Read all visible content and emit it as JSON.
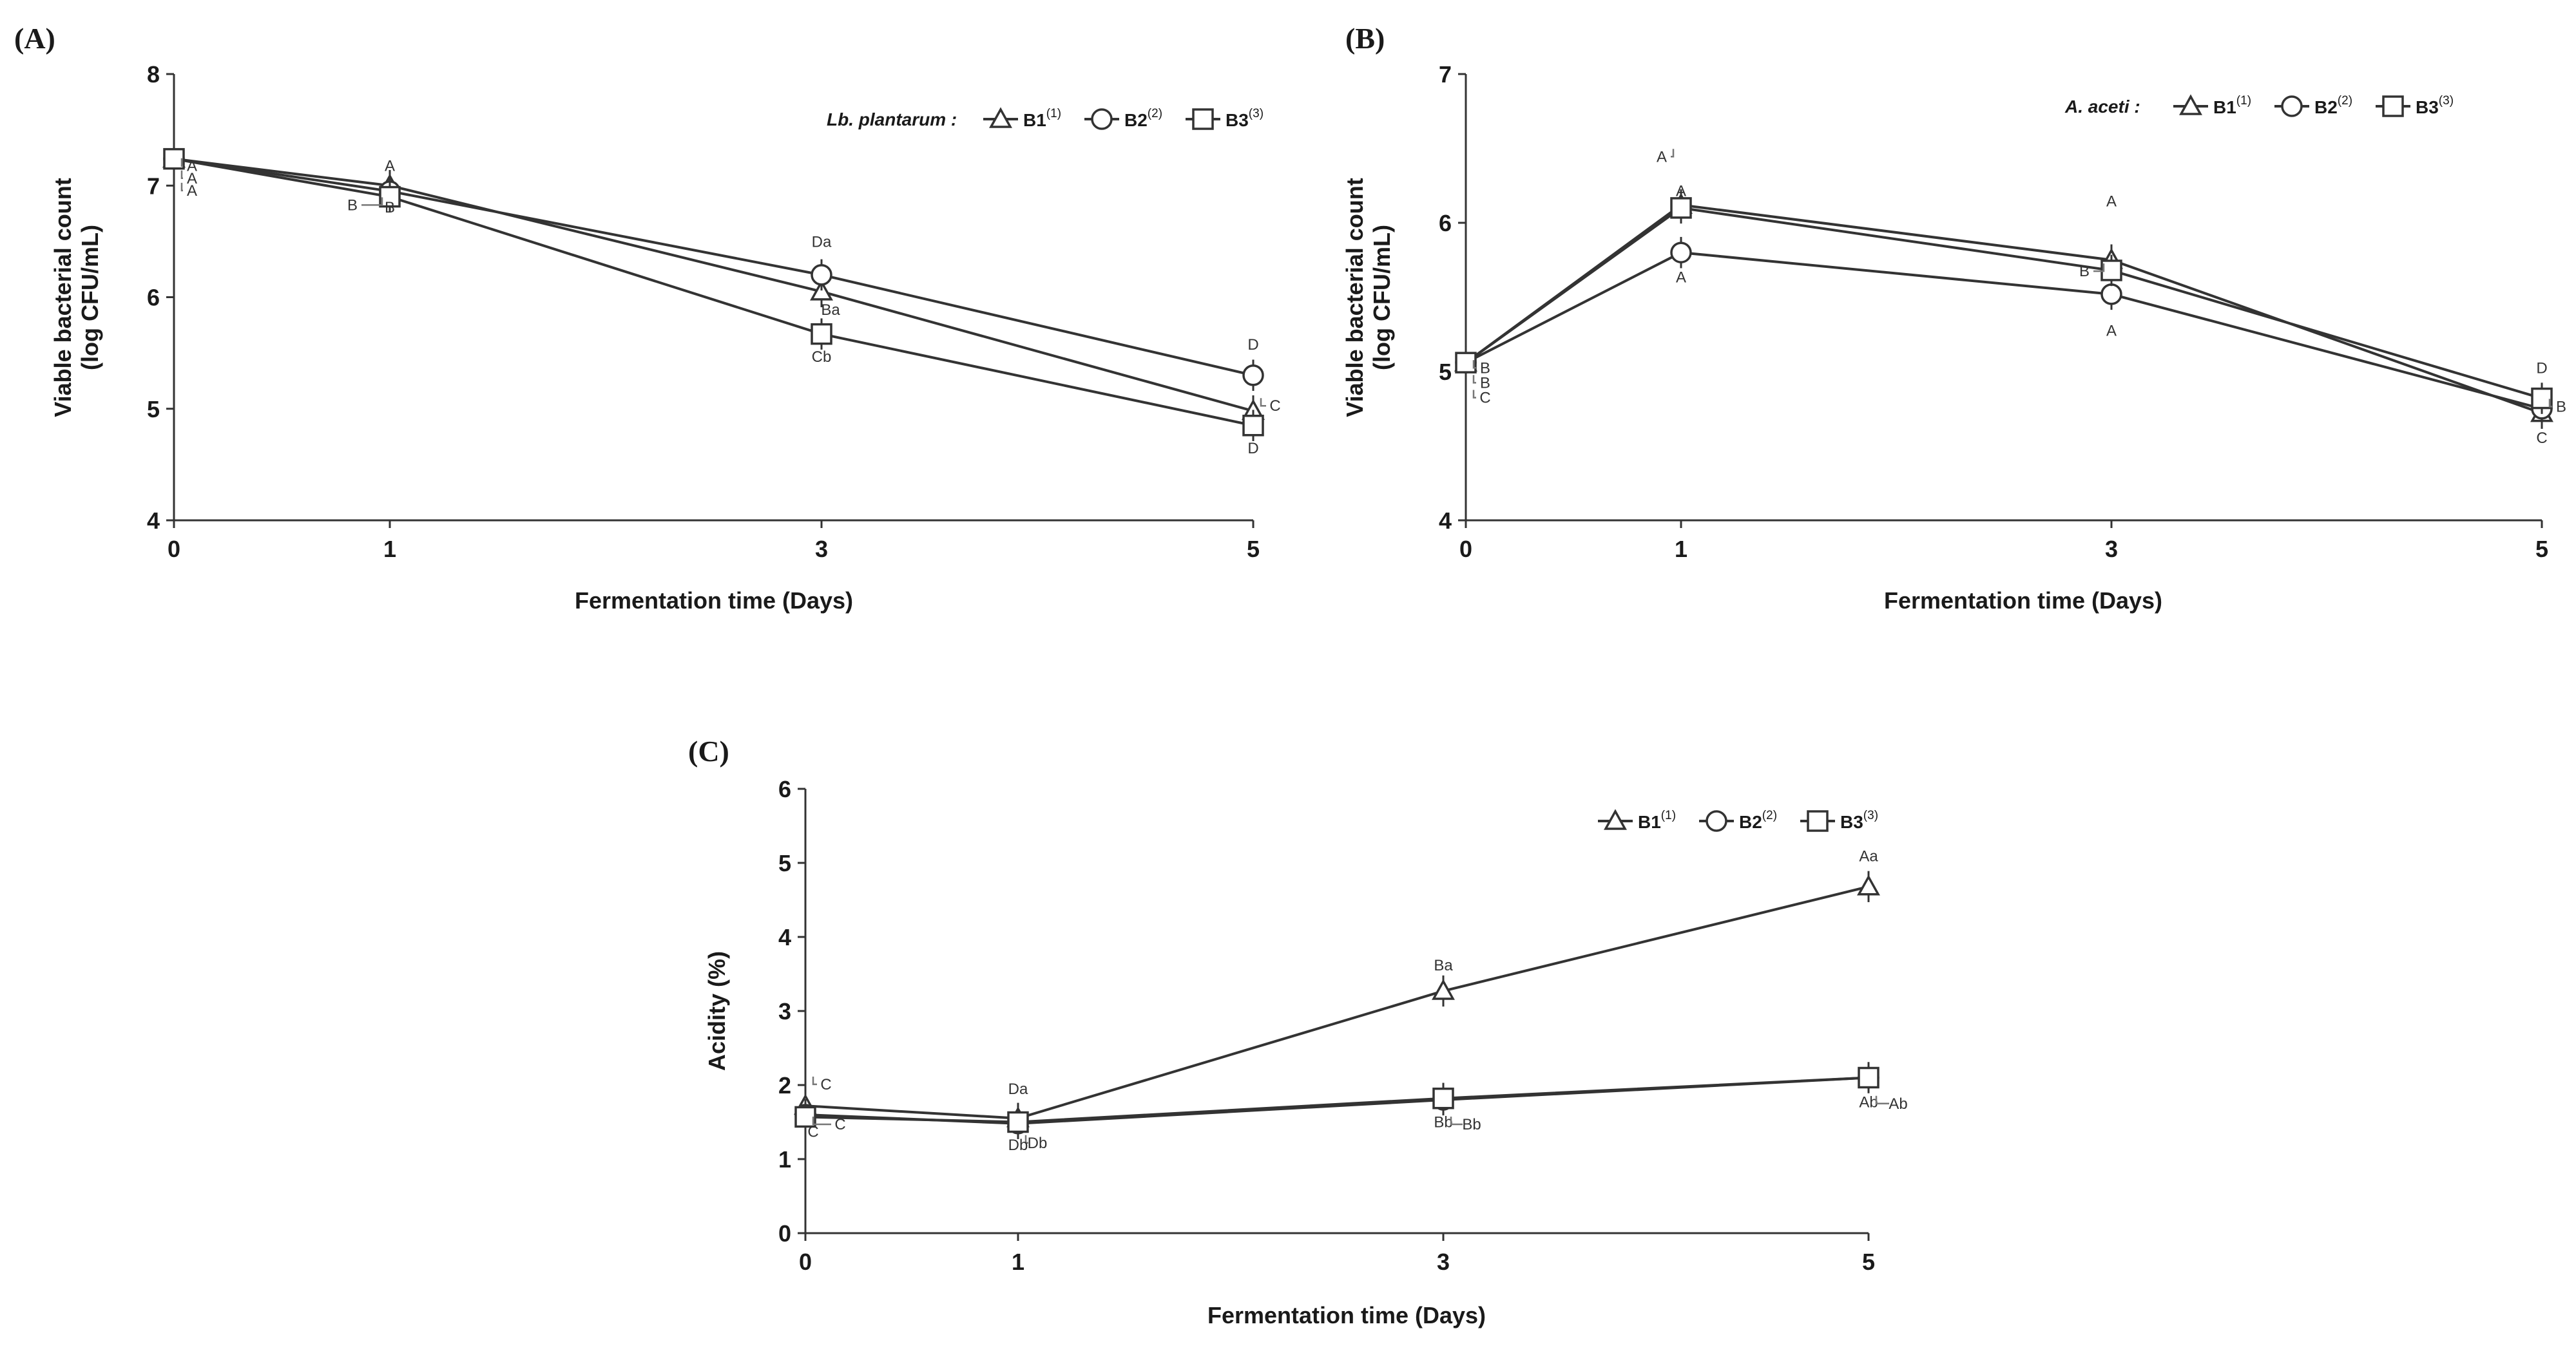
{
  "chart_data": [
    {
      "type": "line",
      "panel_label": "(A)",
      "xlabel": "Fermentation time (Days)",
      "ylabel_line1": "Viable bacterial count",
      "ylabel_line2": "(log CFU/mL)",
      "x": [
        0,
        1,
        3,
        5
      ],
      "xticks": [
        "0",
        "1",
        "3",
        "5"
      ],
      "ylim": [
        4,
        8
      ],
      "yticks": [
        "4",
        "5",
        "6",
        "7",
        "8"
      ],
      "legend_prefix": "Lb. plantarum :",
      "series": [
        {
          "name": "B1",
          "sup": "(1)",
          "marker": "triangle",
          "values": [
            7.24,
            7.0,
            6.05,
            4.98
          ]
        },
        {
          "name": "B2",
          "sup": "(2)",
          "marker": "circle",
          "values": [
            7.24,
            6.95,
            6.2,
            5.3
          ]
        },
        {
          "name": "B3",
          "sup": "(3)",
          "marker": "square",
          "values": [
            7.24,
            6.9,
            5.67,
            4.85
          ]
        }
      ],
      "annotations": [
        {
          "text": "A",
          "x": 0,
          "y": 7.13
        },
        {
          "text": "A",
          "x": 0,
          "y": 7.02
        },
        {
          "text": "A",
          "x": 0,
          "y": 6.91
        },
        {
          "text": "A",
          "x": 1,
          "y": 7.13
        },
        {
          "text": "B",
          "x": 1,
          "y": 6.78
        },
        {
          "text": "B",
          "x": 1,
          "y": 6.76
        },
        {
          "text": "Da",
          "x": 3,
          "y": 6.45
        },
        {
          "text": "Ba",
          "x": 3,
          "y": 5.84
        },
        {
          "text": "Cb",
          "x": 3,
          "y": 5.42
        },
        {
          "text": "D",
          "x": 5,
          "y": 5.53
        },
        {
          "text": "C",
          "x": 5,
          "y": 4.98
        },
        {
          "text": "D",
          "x": 5,
          "y": 4.6
        }
      ]
    },
    {
      "type": "line",
      "panel_label": "(B)",
      "xlabel": "Fermentation time (Days)",
      "ylabel_line1": "Viable bacterial count",
      "ylabel_line2": "(log CFU/mL)",
      "x": [
        0,
        1,
        3,
        5
      ],
      "xticks": [
        "0",
        "1",
        "3",
        "5"
      ],
      "ylim": [
        4,
        7
      ],
      "yticks": [
        "4",
        "5",
        "6",
        "7"
      ],
      "legend_prefix": "A. aceti :",
      "series": [
        {
          "name": "B1",
          "sup": "(1)",
          "marker": "triangle",
          "values": [
            5.06,
            6.12,
            5.75,
            4.72
          ]
        },
        {
          "name": "B2",
          "sup": "(2)",
          "marker": "circle",
          "values": [
            5.06,
            5.8,
            5.52,
            4.75
          ]
        },
        {
          "name": "B3",
          "sup": "(3)",
          "marker": "square",
          "values": [
            5.06,
            6.1,
            5.68,
            4.82
          ]
        }
      ],
      "annotations": [
        {
          "text": "B",
          "x": 0,
          "y": 4.99
        },
        {
          "text": "B",
          "x": 0,
          "y": 4.89
        },
        {
          "text": "C",
          "x": 0,
          "y": 4.79
        },
        {
          "text": "A",
          "x": 1,
          "y": 6.41
        },
        {
          "text": "A",
          "x": 1,
          "y": 6.18
        },
        {
          "text": "A",
          "x": 1,
          "y": 5.6
        },
        {
          "text": "A",
          "x": 3,
          "y": 6.11
        },
        {
          "text": "B",
          "x": 3,
          "y": 5.64
        },
        {
          "text": "A",
          "x": 3,
          "y": 5.24
        },
        {
          "text": "D",
          "x": 5,
          "y": 4.99
        },
        {
          "text": "B",
          "x": 5,
          "y": 4.73
        },
        {
          "text": "C",
          "x": 5,
          "y": 4.52
        }
      ]
    },
    {
      "type": "line",
      "panel_label": "(C)",
      "xlabel": "Fermentation time (Days)",
      "ylabel": "Acidity (%)",
      "x": [
        0,
        1,
        3,
        5
      ],
      "xticks": [
        "0",
        "1",
        "3",
        "5"
      ],
      "ylim": [
        0,
        6
      ],
      "yticks": [
        "0",
        "1",
        "2",
        "3",
        "4",
        "5",
        "6"
      ],
      "legend_prefix": "",
      "series": [
        {
          "name": "B1",
          "sup": "(1)",
          "marker": "triangle",
          "values": [
            1.72,
            1.55,
            3.27,
            4.68
          ]
        },
        {
          "name": "B2",
          "sup": "(2)",
          "marker": "circle",
          "values": [
            1.6,
            1.48,
            1.8,
            2.1
          ]
        },
        {
          "name": "B3",
          "sup": "(3)",
          "marker": "square",
          "values": [
            1.57,
            1.5,
            1.82,
            2.1
          ]
        }
      ],
      "annotations": [
        {
          "text": "C",
          "x": 0,
          "y": 1.94
        },
        {
          "text": "C",
          "x": 0,
          "y": 1.3
        },
        {
          "text": "C",
          "x": 0,
          "y": 1.4
        },
        {
          "text": "Da",
          "x": 1,
          "y": 1.88
        },
        {
          "text": "Db",
          "x": 1,
          "y": 1.15
        },
        {
          "text": "Db",
          "x": 1,
          "y": 1.12
        },
        {
          "text": "Ba",
          "x": 3,
          "y": 3.55
        },
        {
          "text": "Bb",
          "x": 3,
          "y": 1.43
        },
        {
          "text": "Bb",
          "x": 3,
          "y": 1.4
        },
        {
          "text": "Aa",
          "x": 5,
          "y": 5.02
        },
        {
          "text": "Ab",
          "x": 5,
          "y": 1.7
        },
        {
          "text": "Ab",
          "x": 5,
          "y": 1.68
        }
      ]
    }
  ]
}
